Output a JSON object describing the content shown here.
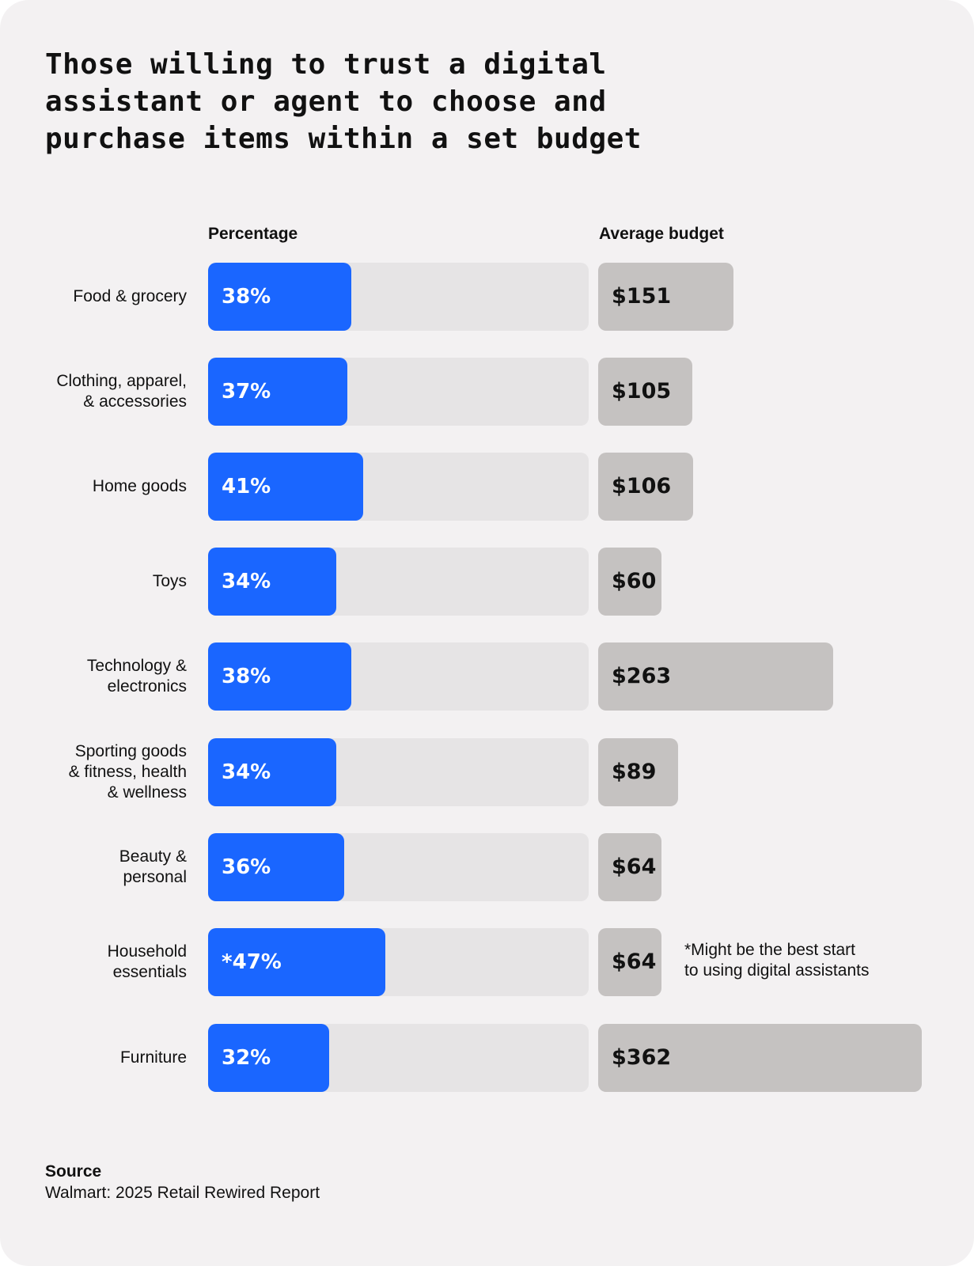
{
  "chart_data": {
    "type": "bar",
    "title": "Those willing to trust a digital assistant or agent to choose and purchase items within a set budget",
    "series_headers": {
      "percentage": "Percentage",
      "budget": "Average budget"
    },
    "categories": [
      "Food & grocery",
      "Clothing, apparel, & accessories",
      "Home goods",
      "Toys",
      "Technology & electronics",
      "Sporting goods & fitness, health & wellness",
      "Beauty & personal",
      "Household essentials",
      "Furniture"
    ],
    "category_lines": [
      [
        "Food & grocery"
      ],
      [
        "Clothing, apparel,",
        "& accessories"
      ],
      [
        "Home goods"
      ],
      [
        "Toys"
      ],
      [
        "Technology &",
        "electronics"
      ],
      [
        "Sporting goods",
        "& fitness, health",
        "& wellness"
      ],
      [
        "Beauty &",
        "personal"
      ],
      [
        "Household",
        "essentials"
      ],
      [
        "Furniture"
      ]
    ],
    "series": [
      {
        "name": "Percentage",
        "values": [
          38,
          37,
          41,
          34,
          38,
          34,
          36,
          47,
          32
        ],
        "labels": [
          "38%",
          "37%",
          "41%",
          "34%",
          "38%",
          "34%",
          "36%",
          "*47%",
          "32%"
        ],
        "max": 100
      },
      {
        "name": "Average budget",
        "values": [
          151,
          105,
          106,
          60,
          263,
          89,
          64,
          64,
          362
        ],
        "labels": [
          "$151",
          "$105",
          "$106",
          "$60",
          "$263",
          "$89",
          "$64",
          "$64",
          "$362"
        ]
      }
    ],
    "annotation": {
      "category_index": 7,
      "lines": [
        "*Might be the best start",
        "to using digital assistants"
      ]
    },
    "source_heading": "Source",
    "source": "Walmart: 2025 Retail Rewired Report",
    "colors": {
      "percentage_fill": "#1a66ff",
      "percentage_track": "#e6e4e5",
      "budget_fill": "#c5c2c1",
      "background": "#f3f1f2"
    }
  }
}
